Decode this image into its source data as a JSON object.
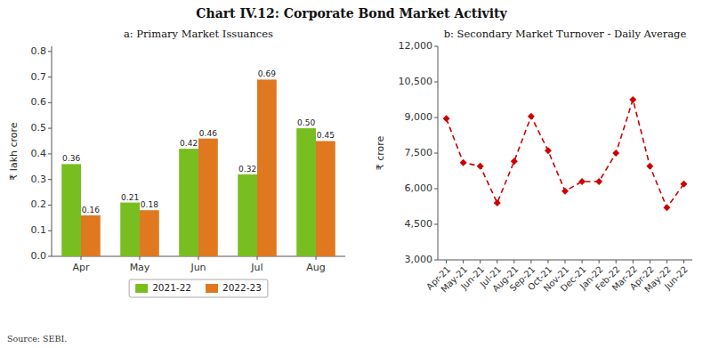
{
  "title": "Chart IV.12: Corporate Bond Market Activity",
  "source": "Source: SEBI.",
  "chart_data": [
    {
      "type": "bar",
      "title": "a: Primary Market Issuances",
      "ylabel": "₹ lakh crore",
      "categories": [
        "Apr",
        "May",
        "Jun",
        "Jul",
        "Aug"
      ],
      "series": [
        {
          "name": "2021-22",
          "color": "#78be20",
          "values": [
            0.36,
            0.21,
            0.42,
            0.32,
            0.5
          ],
          "value_labels": [
            "0.36",
            "0.21",
            "0.42",
            "0.32",
            "0.50"
          ]
        },
        {
          "name": "2022-23",
          "color": "#e07820",
          "values": [
            0.16,
            0.18,
            0.46,
            0.69,
            0.45
          ]
        }
      ],
      "ylim": [
        0,
        0.82
      ],
      "yticks": [
        {
          "value": 0,
          "label": "0.0"
        },
        0.1,
        0.2,
        0.3,
        0.4,
        0.5,
        0.6,
        0.7,
        0.8
      ],
      "data_labels": true,
      "legend": "bottom",
      "grid": false
    },
    {
      "type": "line",
      "title": "b: Secondary Market Turnover - Daily Average",
      "ylabel": "₹ crore",
      "categories": [
        "Apr-21",
        "May-21",
        "Jun-21",
        "Jul-21",
        "Aug-21",
        "Sep-21",
        "Oct-21",
        "Nov-21",
        "Dec-21",
        "Jan-22",
        "Feb-22",
        "Mar-22",
        "Apr-22",
        "May-22",
        "Jun-22"
      ],
      "values": [
        8950,
        7100,
        6950,
        5400,
        7150,
        9050,
        7600,
        5900,
        6300,
        6300,
        7500,
        9750,
        6950,
        5200,
        6200
      ],
      "color": "#cc0000",
      "marker": "diamond",
      "line_style": "dashed",
      "ylim": [
        3000,
        12000
      ],
      "yticks": [
        {
          "value": 3000,
          "label": "3,000"
        },
        {
          "value": 4500,
          "label": "4,500"
        },
        {
          "value": 6000,
          "label": "6,000"
        },
        {
          "value": 7500,
          "label": "7,500"
        },
        {
          "value": 9000,
          "label": "9,000"
        },
        {
          "value": 10500,
          "label": "10,500"
        },
        {
          "value": 12000,
          "label": "12,000"
        }
      ],
      "grid": false
    }
  ]
}
